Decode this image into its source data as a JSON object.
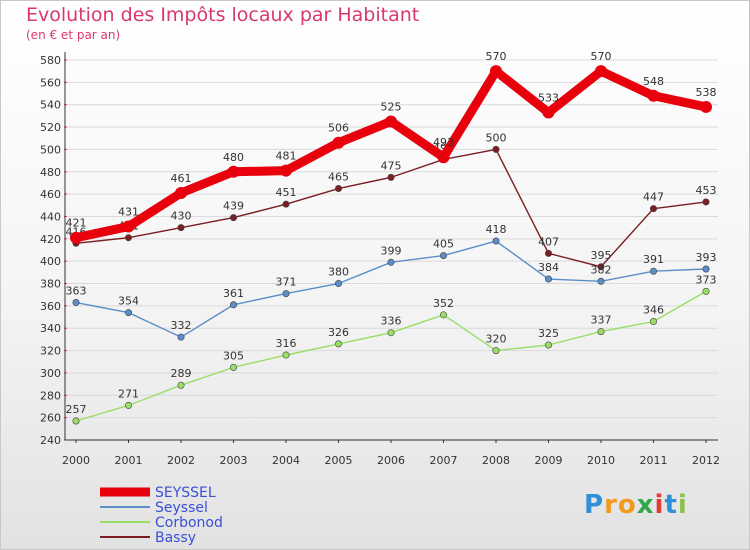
{
  "header": {
    "title": "Evolution des Impôts locaux par Habitant",
    "subtitle": "(en € et par an)"
  },
  "logo": {
    "letters": [
      "P",
      "r",
      "o",
      "x",
      "i",
      "t",
      "i"
    ],
    "colors": [
      "#2f8fd8",
      "#f29a1c",
      "#f29a1c",
      "#2fa84a",
      "#e53935",
      "#2f8fd8",
      "#8bc34a"
    ]
  },
  "chart_data": {
    "type": "line",
    "categories": [
      "2000",
      "2001",
      "2002",
      "2003",
      "2004",
      "2005",
      "2006",
      "2007",
      "2008",
      "2009",
      "2010",
      "2011",
      "2012"
    ],
    "ylim": [
      240,
      580
    ],
    "yticks": [
      "240",
      "260",
      "280",
      "300",
      "320",
      "340",
      "360",
      "380",
      "400",
      "420",
      "440",
      "460",
      "480",
      "500",
      "520",
      "540",
      "560",
      "580"
    ],
    "grid": "horizontal",
    "legend_position": "bottom-left",
    "series": [
      {
        "name": "SEYSSEL",
        "color": "#e8000c",
        "values": [
          421,
          431,
          461,
          480,
          481,
          506,
          525,
          493,
          570,
          533,
          570,
          548,
          538
        ],
        "labels": [
          "421",
          "431",
          "461",
          "480",
          "481",
          "506",
          "525",
          "493",
          "570",
          "533",
          "570",
          "548",
          "538"
        ]
      },
      {
        "name": "Seyssel",
        "color": "#5b8ec9",
        "values": [
          363,
          354,
          332,
          361,
          371,
          380,
          399,
          405,
          418,
          384,
          382,
          391,
          393
        ],
        "labels": [
          "363",
          "354",
          "332",
          "361",
          "371",
          "380",
          "399",
          "405",
          "418",
          "384",
          "382",
          "391",
          "393"
        ]
      },
      {
        "name": "Corbonod",
        "color": "#99dd66",
        "values": [
          257,
          271,
          289,
          305,
          316,
          326,
          336,
          352,
          320,
          325,
          337,
          346,
          373
        ],
        "labels": [
          "257",
          "271",
          "289",
          "305",
          "316",
          "326",
          "336",
          "352",
          "320",
          "325",
          "337",
          "346",
          "373"
        ]
      },
      {
        "name": "Bassy",
        "color": "#7a1e24",
        "values": [
          416,
          421,
          430,
          439,
          451,
          465,
          475,
          491,
          500,
          407,
          395,
          447,
          453
        ],
        "labels": [
          "416",
          "421",
          "430",
          "439",
          "451",
          "465",
          "475",
          "491",
          "500",
          "407",
          "395",
          "447",
          "453"
        ]
      }
    ]
  }
}
